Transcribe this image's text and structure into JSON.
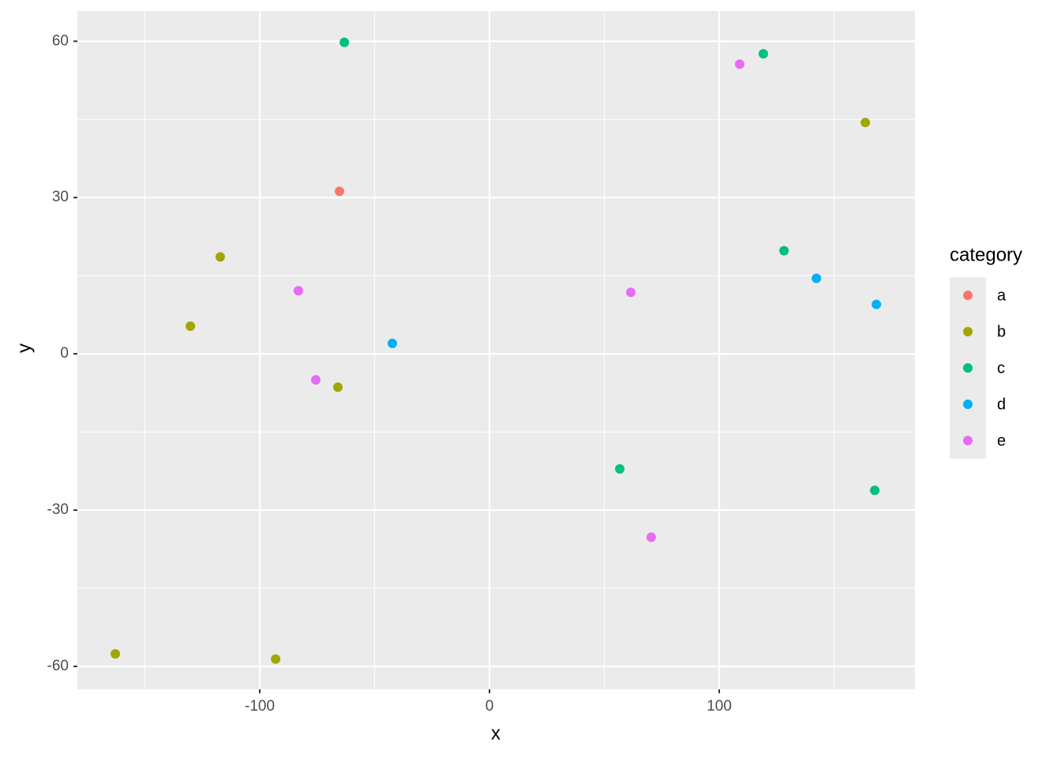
{
  "chart_data": {
    "type": "scatter",
    "x_label": "x",
    "y_label": "y",
    "legend_title": "category",
    "xlim": [
      -179.4,
      185.2
    ],
    "ylim": [
      -64.4,
      65.8
    ],
    "xticks": [
      -100,
      0,
      100
    ],
    "yticks": [
      -60,
      -30,
      0,
      30,
      60
    ],
    "xminorticks": [
      -150,
      -50,
      50,
      150
    ],
    "yminorticks": [
      -45,
      -15,
      15,
      45
    ],
    "grid": true,
    "legend_position": "right",
    "series": [
      {
        "name": "a",
        "color": "#F8766D",
        "x": [
          -65.3
        ],
        "y": [
          31.2
        ]
      },
      {
        "name": "b",
        "color": "#A3A500",
        "x": [
          -162.9,
          -117.2,
          -130.2,
          -93.1,
          -66.0,
          163.6
        ],
        "y": [
          -57.6,
          18.6,
          5.3,
          -58.6,
          -6.4,
          44.4
        ]
      },
      {
        "name": "c",
        "color": "#00BF7D",
        "x": [
          -63.2,
          119.2,
          128.2,
          56.7,
          167.7
        ],
        "y": [
          59.8,
          57.6,
          19.8,
          -22.1,
          -26.2
        ]
      },
      {
        "name": "d",
        "color": "#00B0F6",
        "x": [
          -42.3,
          142.3,
          168.4
        ],
        "y": [
          2.0,
          14.5,
          9.5
        ]
      },
      {
        "name": "e",
        "color": "#E76BF3",
        "x": [
          108.9,
          -83.2,
          -75.6,
          61.5,
          70.4
        ],
        "y": [
          55.6,
          12.1,
          -5.0,
          11.8,
          -35.2
        ]
      }
    ]
  }
}
